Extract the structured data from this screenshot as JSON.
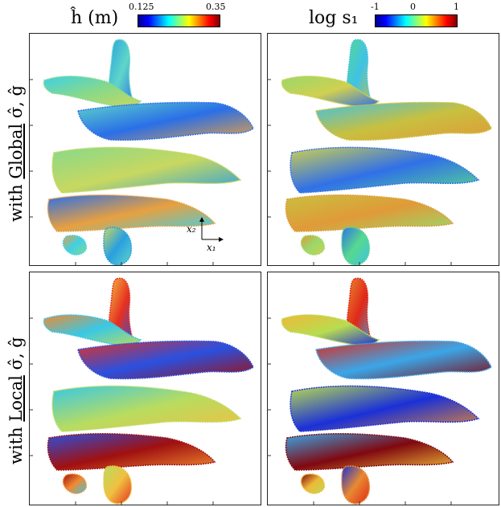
{
  "columns": [
    {
      "id": "h",
      "title": "ĥ (m)",
      "colorbar": {
        "min_label": "0.125",
        "max_label": "0.35",
        "colormap": "jet"
      }
    },
    {
      "id": "s1",
      "title": "log s₁",
      "colorbar": {
        "min_label": "-1",
        "mid_label": "0",
        "max_label": "1",
        "colormap": "jet"
      }
    }
  ],
  "rows": [
    {
      "id": "global",
      "prefix": "with ",
      "underlined": "Global",
      "suffix": " σ̂, ĝ"
    },
    {
      "id": "local",
      "prefix": "with ",
      "underlined": "Local",
      "suffix": " σ̂, ĝ"
    }
  ],
  "axes_indicator": {
    "x_label": "x₁",
    "y_label": "x₂"
  },
  "colors": {
    "jet_stops": [
      "#00008f",
      "#0000ff",
      "#0080ff",
      "#00ffff",
      "#80ff80",
      "#ffff00",
      "#ff8000",
      "#ff0000",
      "#800000"
    ]
  },
  "panel_tints": {
    "global_h": [
      "#2a9fe0",
      "#3fd0e6",
      "#5fd6c8",
      "#87d98a",
      "#2a6fe8",
      "#c8d860",
      "#e8a040"
    ],
    "global_s1": [
      "#57d88f",
      "#9ad86a",
      "#3fc2e6",
      "#d0d050",
      "#c8c040",
      "#3070e8",
      "#e09a38"
    ],
    "local_h": [
      "#f0c040",
      "#f08a30",
      "#e63020",
      "#38c8e6",
      "#2a50e0",
      "#b8dc60",
      "#a01010"
    ],
    "local_s1": [
      "#e88a30",
      "#f0b838",
      "#e02818",
      "#b8dc50",
      "#3aa6e8",
      "#1a30d8",
      "#800810"
    ]
  }
}
